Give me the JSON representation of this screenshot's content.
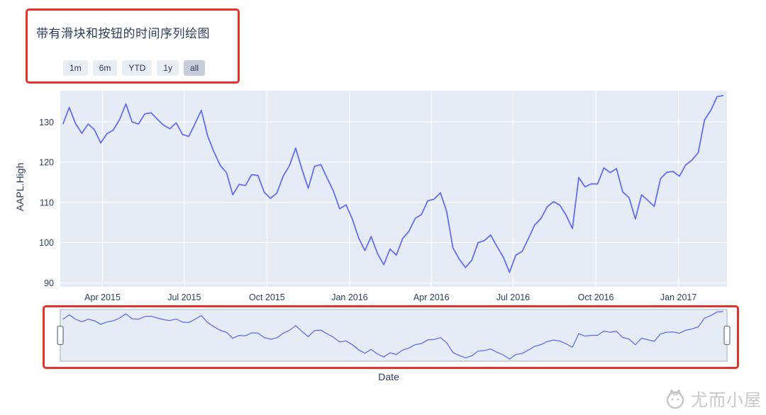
{
  "title": {
    "text": "带有滑块和按钮的时间序列绘图"
  },
  "range_selector": {
    "buttons": [
      "1m",
      "6m",
      "YTD",
      "1y",
      "all"
    ],
    "active_index": 4
  },
  "watermark": {
    "text": "尤而小屋"
  },
  "colors": {
    "line": "#636efa",
    "plot_bg": "#e5ecf6",
    "grid": "#ffffff",
    "axis_text": "#2a3f5f",
    "annotation_red": "#e5322d",
    "slider_border": "#a2adbd",
    "handle_fill": "#ffffff",
    "handle_stroke": "#6b7684"
  },
  "chart_data": {
    "type": "line",
    "series_name": "AAPL.High",
    "xlabel": "Date",
    "ylabel": "AAPL.High",
    "x_start": "2015-02-16",
    "x_step_days": 7,
    "x_range": [
      "2015-02-13",
      "2017-02-24"
    ],
    "y_range": [
      89,
      137.8
    ],
    "yticks": [
      90,
      100,
      110,
      120,
      130
    ],
    "xticks": [
      {
        "label": "Apr 2015",
        "date": "2015-04-01"
      },
      {
        "label": "Jul 2015",
        "date": "2015-07-01"
      },
      {
        "label": "Oct 2015",
        "date": "2015-10-01"
      },
      {
        "label": "Jan 2016",
        "date": "2016-01-01"
      },
      {
        "label": "Apr 2016",
        "date": "2016-04-01"
      },
      {
        "label": "Jul 2016",
        "date": "2016-07-01"
      },
      {
        "label": "Oct 2016",
        "date": "2016-10-01"
      },
      {
        "label": "Jan 2017",
        "date": "2017-01-01"
      }
    ],
    "rangeslider": true,
    "values": [
      129.5,
      133.6,
      129.6,
      127.2,
      129.5,
      128.1,
      124.8,
      127.1,
      128.0,
      130.6,
      134.5,
      130.0,
      129.5,
      132.0,
      132.3,
      130.7,
      129.2,
      128.3,
      129.8,
      126.9,
      126.4,
      129.6,
      132.9,
      126.5,
      122.6,
      119.2,
      117.4,
      111.9,
      114.5,
      114.2,
      116.9,
      116.7,
      112.5,
      111.0,
      112.3,
      116.5,
      119.1,
      123.5,
      118.2,
      113.5,
      119.0,
      119.4,
      116.0,
      112.8,
      108.4,
      109.4,
      105.9,
      101.2,
      98.0,
      101.5,
      97.3,
      94.5,
      98.4,
      96.9,
      101.0,
      102.8,
      106.0,
      107.0,
      110.4,
      110.8,
      112.4,
      107.8,
      98.7,
      95.9,
      93.8,
      95.6,
      100.0,
      100.5,
      101.9,
      99.0,
      96.4,
      92.6,
      96.9,
      97.8,
      101.0,
      104.4,
      106.0,
      108.9,
      110.2,
      109.3,
      106.8,
      103.5,
      116.2,
      113.9,
      114.6,
      114.6,
      118.6,
      117.4,
      118.4,
      112.6,
      111.2,
      105.9,
      111.9,
      110.5,
      109.0,
      115.9,
      117.5,
      117.7,
      116.5,
      119.3,
      120.5,
      122.4,
      130.5,
      132.9,
      136.3,
      136.6
    ]
  }
}
